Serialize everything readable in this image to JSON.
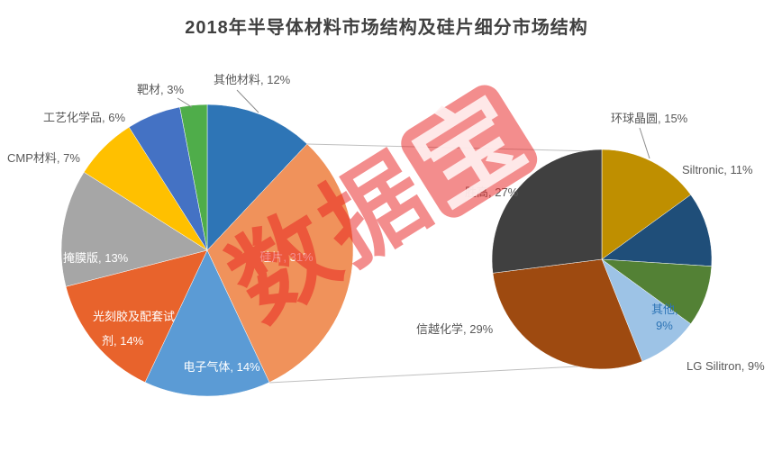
{
  "title": "2018年半导体材料市场结构及硅片细分市场结构",
  "watermark": {
    "text": "数据",
    "seal": "宝",
    "color": "#E81C1C"
  },
  "chart_data": [
    {
      "type": "pie",
      "name": "semiconductor-materials-market-2018",
      "unit": "%",
      "start_angle_deg": 0,
      "direction": "clockwise",
      "label_format": "{label}, {value}%",
      "slices": [
        {
          "label": "其他材料",
          "value": 12,
          "color": "#2E75B6"
        },
        {
          "label": "硅片",
          "value": 31,
          "color": "#F0925B"
        },
        {
          "label": "电子气体",
          "value": 14,
          "color": "#5B9BD5"
        },
        {
          "label": "光刻胶及配套试剂",
          "value": 14,
          "color": "#E8632C"
        },
        {
          "label": "掩膜版",
          "value": 13,
          "color": "#A6A6A6"
        },
        {
          "label": "CMP材料",
          "value": 7,
          "color": "#FFC000"
        },
        {
          "label": "工艺化学品",
          "value": 6,
          "color": "#4472C4"
        },
        {
          "label": "靶材",
          "value": 3,
          "color": "#4FAD4A"
        }
      ]
    },
    {
      "type": "pie",
      "name": "silicon-wafer-submarket-2018",
      "unit": "%",
      "start_angle_deg": 0,
      "direction": "clockwise",
      "label_format": "{label}, {value}%",
      "slices": [
        {
          "label": "环球晶圆",
          "value": 15,
          "color": "#BF8F00"
        },
        {
          "label": "Siltronic",
          "value": 11,
          "color": "#1F4E79"
        },
        {
          "label": "LG Silitron",
          "value": 9,
          "color": "#538135"
        },
        {
          "label": "其他",
          "value": 9,
          "color": "#9DC3E6"
        },
        {
          "label": "信越化学",
          "value": 29,
          "color": "#9E4A10"
        },
        {
          "label": "胜高",
          "value": 27,
          "color": "#404040"
        }
      ]
    }
  ]
}
